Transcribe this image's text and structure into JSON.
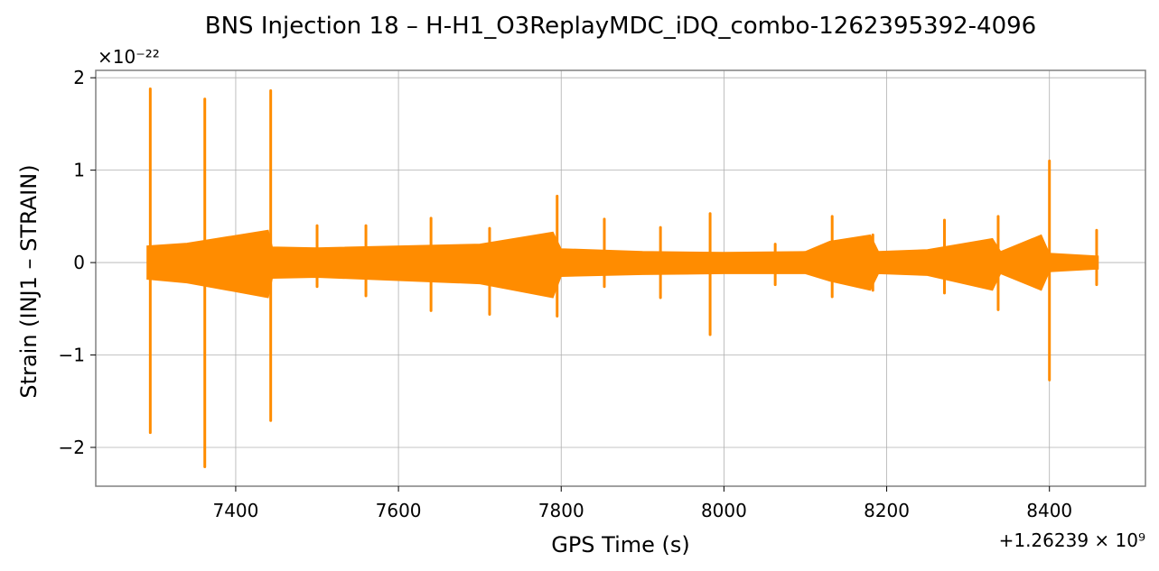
{
  "chart_data": {
    "type": "line",
    "title": "BNS Injection 18 – H-H1_O3ReplayMDC_iDQ_combo-1262395392-4096",
    "xlabel": "GPS Time (s)",
    "ylabel": "Strain (INJ1 – STRAIN)",
    "x_offset_label": "+1.26239 × 10⁹",
    "y_scale_label": "×10⁻²²",
    "x_offset": 1262390000,
    "y_scale": 1e-22,
    "xlim": [
      7228,
      8518
    ],
    "ylim": [
      -2.42,
      2.08
    ],
    "xticks": [
      7400,
      7600,
      7800,
      8000,
      8200,
      8400
    ],
    "xtick_labels": [
      "7400",
      "7600",
      "7800",
      "8000",
      "8200",
      "8400"
    ],
    "yticks": [
      -2,
      -1,
      0,
      1,
      2
    ],
    "ytick_labels": [
      "−2",
      "−1",
      "0",
      "1",
      "2"
    ],
    "grid": true,
    "color": "#ff8c00",
    "series": [
      {
        "x_range": [
          7291,
          8460
        ],
        "band": {
          "x": [
            7291,
            7340,
            7440,
            7445,
            7500,
            7700,
            7790,
            7800,
            7900,
            8000,
            8100,
            8130,
            8180,
            8190,
            8250,
            8330,
            8340,
            8390,
            8400,
            8460
          ],
          "upper": [
            0.18,
            0.21,
            0.35,
            0.17,
            0.16,
            0.2,
            0.33,
            0.15,
            0.12,
            0.11,
            0.12,
            0.23,
            0.3,
            0.12,
            0.14,
            0.26,
            0.12,
            0.3,
            0.1,
            0.07
          ],
          "lower": [
            -0.18,
            -0.22,
            -0.38,
            -0.17,
            -0.16,
            -0.23,
            -0.38,
            -0.15,
            -0.13,
            -0.12,
            -0.12,
            -0.2,
            -0.3,
            -0.12,
            -0.14,
            -0.3,
            -0.12,
            -0.3,
            -0.1,
            -0.07
          ]
        },
        "spikes": [
          {
            "x": 7295,
            "high": 1.88,
            "low": -1.84
          },
          {
            "x": 7362,
            "high": 1.77,
            "low": -2.21
          },
          {
            "x": 7443,
            "high": 1.86,
            "low": -1.71
          },
          {
            "x": 7500,
            "high": 0.4,
            "low": -0.26
          },
          {
            "x": 7560,
            "high": 0.4,
            "low": -0.36
          },
          {
            "x": 7640,
            "high": 0.48,
            "low": -0.52
          },
          {
            "x": 7712,
            "high": 0.37,
            "low": -0.56
          },
          {
            "x": 7795,
            "high": 0.72,
            "low": -0.58
          },
          {
            "x": 7853,
            "high": 0.47,
            "low": -0.26
          },
          {
            "x": 7922,
            "high": 0.38,
            "low": -0.38
          },
          {
            "x": 7983,
            "high": 0.53,
            "low": -0.78
          },
          {
            "x": 8063,
            "high": 0.2,
            "low": -0.24
          },
          {
            "x": 8133,
            "high": 0.5,
            "low": -0.37
          },
          {
            "x": 8183,
            "high": 0.3,
            "low": -0.3
          },
          {
            "x": 8271,
            "high": 0.46,
            "low": -0.33
          },
          {
            "x": 8337,
            "high": 0.5,
            "low": -0.51
          },
          {
            "x": 8400,
            "high": 1.1,
            "low": -1.27
          },
          {
            "x": 8458,
            "high": 0.35,
            "low": -0.24
          }
        ]
      }
    ]
  }
}
